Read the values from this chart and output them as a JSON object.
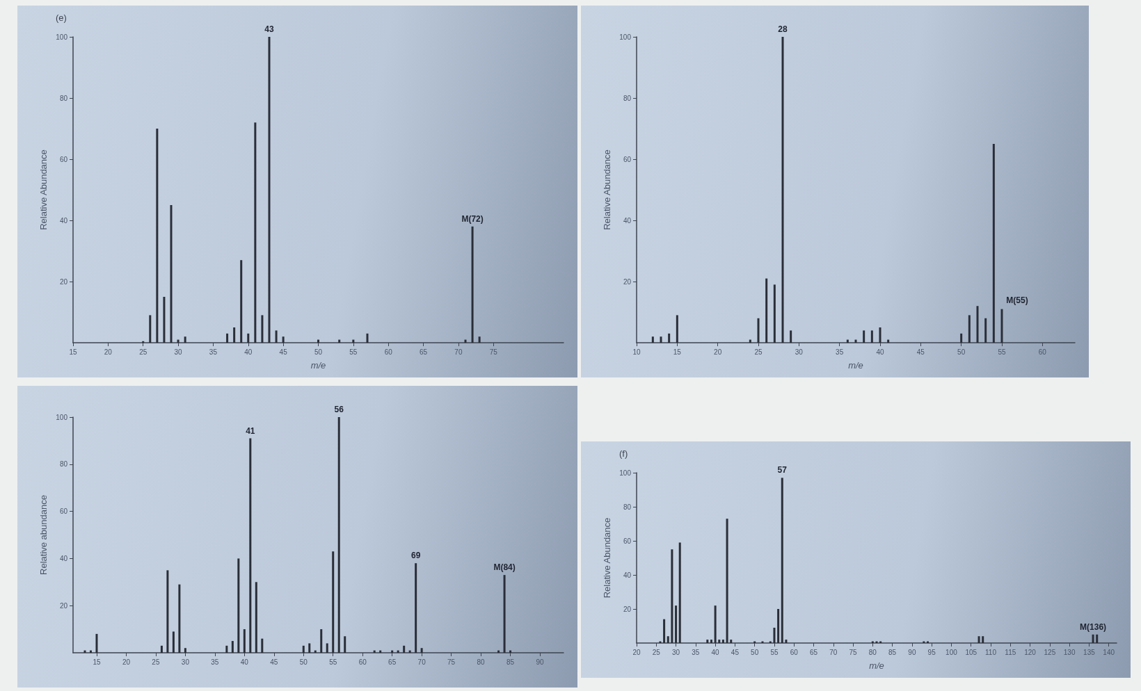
{
  "chart_data": [
    {
      "type": "bar",
      "title": "(e)",
      "xlabel": "m/e",
      "ylabel": "Relative Abundance",
      "color": "#2a2e38",
      "x": [
        25,
        26,
        27,
        28,
        29,
        30,
        31,
        37,
        38,
        39,
        40,
        41,
        42,
        43,
        44,
        45,
        50,
        53,
        55,
        57,
        71,
        72,
        73
      ],
      "values": [
        0.5,
        9,
        70,
        15,
        45,
        1,
        2,
        3,
        5,
        27,
        3,
        72,
        9,
        100,
        4,
        2,
        1,
        1,
        1,
        3,
        1,
        38,
        2
      ],
      "xlim": [
        15,
        85
      ],
      "xticks": [
        15,
        20,
        25,
        30,
        35,
        40,
        45,
        50,
        55,
        60,
        65,
        70,
        75
      ],
      "ylim": [
        0,
        100
      ],
      "yticks": [
        20,
        40,
        60,
        80,
        100
      ],
      "annotations": [
        {
          "text": "43",
          "x": 43,
          "y": 100
        },
        {
          "text": "M(72)",
          "x": 72,
          "y": 38
        }
      ]
    },
    {
      "type": "bar",
      "xlabel": "m/e",
      "ylabel": "Relative Abundance",
      "color": "#2a2e38",
      "x": [
        12,
        13,
        14,
        15,
        24,
        25,
        26,
        27,
        28,
        29,
        36,
        37,
        38,
        39,
        40,
        41,
        50,
        51,
        52,
        53,
        54,
        55
      ],
      "values": [
        2,
        2,
        3,
        9,
        1,
        8,
        21,
        19,
        100,
        4,
        1,
        1,
        4,
        4,
        5,
        1,
        3,
        9,
        12,
        8,
        65,
        11
      ],
      "xlim": [
        10,
        64
      ],
      "xticks": [
        10,
        15,
        20,
        25,
        30,
        35,
        40,
        45,
        50,
        55,
        60
      ],
      "ylim": [
        0,
        100
      ],
      "yticks": [
        20,
        40,
        60,
        80,
        100
      ],
      "annotations": [
        {
          "text": "28",
          "x": 28,
          "y": 100
        },
        {
          "text": "M(55)",
          "x": 55,
          "y": 11
        }
      ]
    },
    {
      "type": "bar",
      "ylabel": "Relative abundance",
      "color": "#2a2e38",
      "x": [
        13,
        14,
        15,
        26,
        27,
        28,
        29,
        30,
        37,
        38,
        39,
        40,
        41,
        42,
        43,
        50,
        51,
        52,
        53,
        54,
        55,
        56,
        57,
        62,
        63,
        65,
        66,
        67,
        68,
        69,
        70,
        83,
        84,
        85
      ],
      "values": [
        1,
        1,
        8,
        3,
        35,
        9,
        29,
        2,
        3,
        5,
        40,
        10,
        91,
        30,
        6,
        3,
        4,
        1,
        10,
        4,
        43,
        100,
        7,
        1,
        1,
        1,
        1,
        3,
        1,
        38,
        2,
        1,
        33,
        1
      ],
      "xlim": [
        11,
        94
      ],
      "xticks": [
        15,
        20,
        25,
        30,
        35,
        40,
        45,
        50,
        55,
        60,
        65,
        70,
        75,
        80,
        85,
        90
      ],
      "ylim": [
        0,
        100
      ],
      "yticks": [
        20,
        40,
        60,
        80,
        100
      ],
      "annotations": [
        {
          "text": "41",
          "x": 41,
          "y": 91
        },
        {
          "text": "56",
          "x": 56,
          "y": 100
        },
        {
          "text": "69",
          "x": 69,
          "y": 38
        },
        {
          "text": "M(84)",
          "x": 84,
          "y": 33
        }
      ]
    },
    {
      "type": "bar",
      "title": "(f)",
      "xlabel": "m/e",
      "ylabel": "Relative Abundance",
      "color": "#2a2e38",
      "x": [
        26,
        27,
        28,
        29,
        30,
        31,
        38,
        39,
        40,
        41,
        42,
        43,
        44,
        50,
        52,
        54,
        55,
        56,
        57,
        58,
        80,
        81,
        82,
        93,
        94,
        107,
        108,
        136,
        137
      ],
      "values": [
        1,
        14,
        4,
        55,
        22,
        59,
        2,
        2,
        22,
        2,
        2,
        73,
        2,
        1,
        1,
        1,
        9,
        20,
        97,
        2,
        1,
        1,
        1,
        1,
        1,
        4,
        4,
        5,
        5
      ],
      "xlim": [
        20,
        142
      ],
      "xticks": [
        20,
        25,
        30,
        35,
        40,
        45,
        50,
        55,
        60,
        65,
        70,
        75,
        80,
        85,
        90,
        95,
        100,
        105,
        110,
        115,
        120,
        125,
        130,
        135,
        140
      ],
      "ylim": [
        0,
        100
      ],
      "yticks": [
        20,
        40,
        60,
        80,
        100
      ],
      "annotations": [
        {
          "text": "57",
          "x": 57,
          "y": 97
        },
        {
          "text": "M(136)",
          "x": 136,
          "y": 5
        }
      ]
    }
  ]
}
